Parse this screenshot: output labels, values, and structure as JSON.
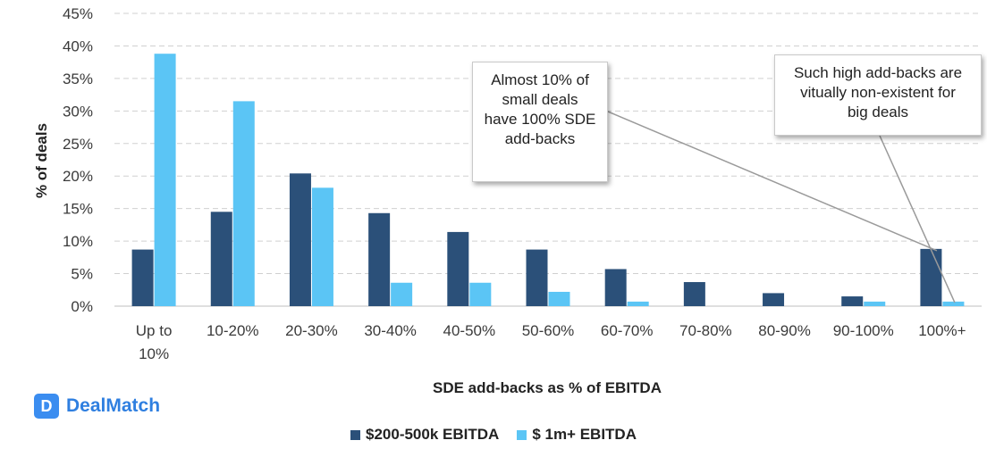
{
  "chart_data": {
    "type": "bar",
    "title": "",
    "xlabel": "SDE add-backs as % of EBITDA",
    "ylabel": "% of deals",
    "ylim": [
      0,
      45
    ],
    "y_ticks": [
      "0%",
      "5%",
      "10%",
      "15%",
      "20%",
      "25%",
      "30%",
      "35%",
      "40%",
      "45%"
    ],
    "grid": true,
    "legend_position": "bottom-center",
    "categories": [
      "Up to\n10%",
      "10-20%",
      "20-30%",
      "30-40%",
      "40-50%",
      "50-60%",
      "60-70%",
      "70-80%",
      "80-90%",
      "90-100%",
      "100%+"
    ],
    "series": [
      {
        "name": "$200-500k EBITDA",
        "color": "#2b5079",
        "values": [
          8.7,
          14.5,
          20.4,
          14.3,
          11.4,
          8.7,
          5.7,
          3.7,
          2.0,
          1.5,
          8.8
        ]
      },
      {
        "name": "$ 1m+ EBITDA",
        "color": "#5bc5f5",
        "values": [
          38.8,
          31.5,
          18.2,
          3.6,
          3.6,
          2.2,
          0.7,
          0,
          0,
          0.7,
          0.7
        ]
      }
    ],
    "annotations": [
      {
        "text": "Almost 10% of\nsmall deals\nhave 100% SDE\nadd-backs",
        "points_to": "100%+ / $200-500k EBITDA"
      },
      {
        "text": "Such high add-backs are\nvitually non-existent for\nbig deals",
        "points_to": "100%+ / $ 1m+ EBITDA"
      }
    ]
  },
  "logo": {
    "mark": "D",
    "name": "DealMatch",
    "color": "#3b8df0"
  }
}
